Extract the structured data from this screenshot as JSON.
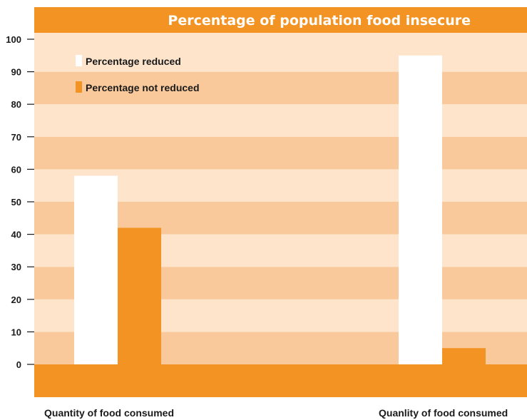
{
  "chart_data": {
    "type": "bar",
    "title": "Percentage of population food insecure",
    "categories": [
      "Quantity of food consumed",
      "Quanlity of food consumed"
    ],
    "series": [
      {
        "name": "Percentage reduced",
        "values": [
          58,
          95
        ],
        "color": "#ffffff"
      },
      {
        "name": "Percentage not reduced",
        "values": [
          42,
          5
        ],
        "color": "#f39323"
      }
    ],
    "ylim": [
      0,
      100
    ],
    "yticks": [
      0,
      10,
      20,
      30,
      40,
      50,
      60,
      70,
      80,
      90,
      100
    ],
    "xlabel": "",
    "ylabel": "",
    "grid": "alternating horizontal bands",
    "legend_position": "top-left",
    "colors": {
      "band_dark": "#f9c99b",
      "band_light": "#fde4cb",
      "frame": "#f39323",
      "text": "#1a1a1a"
    }
  }
}
